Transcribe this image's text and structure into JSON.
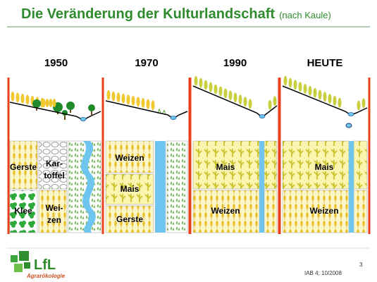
{
  "header": {
    "title": "Die Veränderung der Kulturlandschaft",
    "subtitle": "(nach Kaule)"
  },
  "columns": [
    {
      "year": "1950",
      "fields": [
        {
          "lines": [
            "Gerste"
          ]
        },
        {
          "lines": [
            "Kar-",
            "toffel"
          ]
        },
        {
          "lines": [
            "Klee"
          ]
        },
        {
          "lines": [
            "Wei-",
            "zen"
          ]
        }
      ]
    },
    {
      "year": "1970",
      "fields": [
        {
          "lines": [
            "Weizen"
          ]
        },
        {
          "lines": [
            "Mais"
          ]
        },
        {
          "lines": [
            "Gerste"
          ]
        }
      ]
    },
    {
      "year": "1990",
      "fields": [
        {
          "lines": [
            "Mais"
          ]
        },
        {
          "lines": [
            "Weizen"
          ]
        }
      ]
    },
    {
      "year": "HEUTE",
      "fields": [
        {
          "lines": [
            "Mais"
          ]
        },
        {
          "lines": [
            "Weizen"
          ]
        }
      ]
    }
  ],
  "logo": {
    "name": "LfL",
    "unit": "Agrarökologie"
  },
  "footer": {
    "reference": "IAB 4; 10/2008",
    "page": "3"
  }
}
